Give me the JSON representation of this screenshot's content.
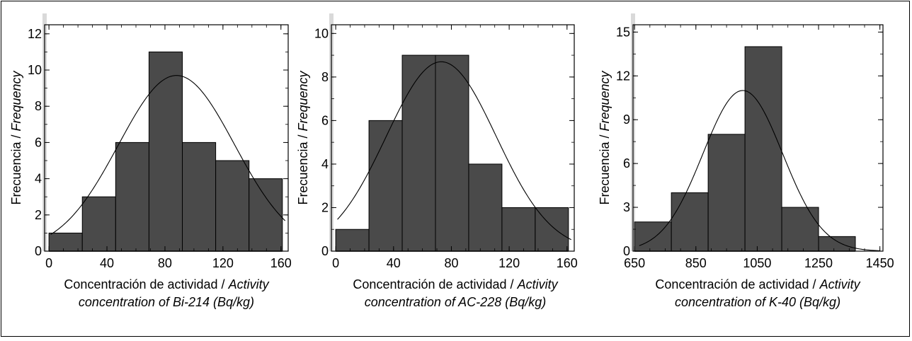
{
  "chart_data": [
    {
      "type": "bar",
      "subtype": "histogram",
      "bin_edges": [
        0,
        23,
        46,
        69,
        92,
        115,
        138,
        161
      ],
      "values": [
        1,
        3,
        6,
        11,
        6,
        5,
        4
      ],
      "normal_curve": {
        "mean": 88,
        "sd": 40,
        "peak": 9.7
      },
      "xlim": [
        -3,
        165
      ],
      "ylim": [
        0,
        12.5
      ],
      "xticks": [
        0,
        40,
        80,
        120,
        160
      ],
      "yticks": [
        0,
        2,
        4,
        6,
        8,
        10,
        12
      ],
      "ylabel": "Frecuencia / ",
      "ylabel_italic": "Frequency",
      "xlabel_line1": "Concentración de actividad / ",
      "xlabel_line1_italic": "Activity",
      "xlabel_line2_italic": "concentration of Bi-214 (Bq/kg)",
      "colors": {
        "bar_fill": "#4a4a4a",
        "bar_edge": "#000000",
        "curve": "#000000"
      }
    },
    {
      "type": "bar",
      "subtype": "histogram",
      "bin_edges": [
        0,
        23,
        46,
        69,
        92,
        115,
        138,
        161
      ],
      "values": [
        1,
        6,
        9,
        9,
        4,
        2,
        2
      ],
      "normal_curve": {
        "mean": 73,
        "sd": 38,
        "peak": 8.7
      },
      "xlim": [
        -3,
        165
      ],
      "ylim": [
        0,
        10.4
      ],
      "xticks": [
        0,
        40,
        80,
        120,
        160
      ],
      "yticks": [
        0,
        2,
        4,
        6,
        8,
        10
      ],
      "ylabel": "Frecuencia / ",
      "ylabel_italic": "Frequency",
      "xlabel_line1": "Concentración de actividad / ",
      "xlabel_line1_italic": "Activity",
      "xlabel_line2_italic": "concentration of AC-228 (Bq/kg)",
      "colors": {
        "bar_fill": "#4a4a4a",
        "bar_edge": "#000000",
        "curve": "#000000"
      }
    },
    {
      "type": "bar",
      "subtype": "histogram",
      "bin_edges": [
        650,
        770,
        890,
        1010,
        1130,
        1250,
        1370
      ],
      "values": [
        2,
        4,
        8,
        14,
        3,
        1
      ],
      "normal_curve": {
        "mean": 1003,
        "sd": 130,
        "peak": 11.0
      },
      "xlim": [
        645,
        1460
      ],
      "ylim": [
        0,
        15.5
      ],
      "xticks": [
        650,
        850,
        1050,
        1250,
        1450
      ],
      "yticks": [
        0,
        3,
        6,
        9,
        12,
        15
      ],
      "ylabel": "Frecuencia / ",
      "ylabel_italic": "Frequency",
      "xlabel_line1": "Concentración de actividad / ",
      "xlabel_line1_italic": "Activity",
      "xlabel_line2_italic": "concentration of K-40 (Bq/kg)",
      "colors": {
        "bar_fill": "#4a4a4a",
        "bar_edge": "#000000",
        "curve": "#000000"
      }
    }
  ]
}
